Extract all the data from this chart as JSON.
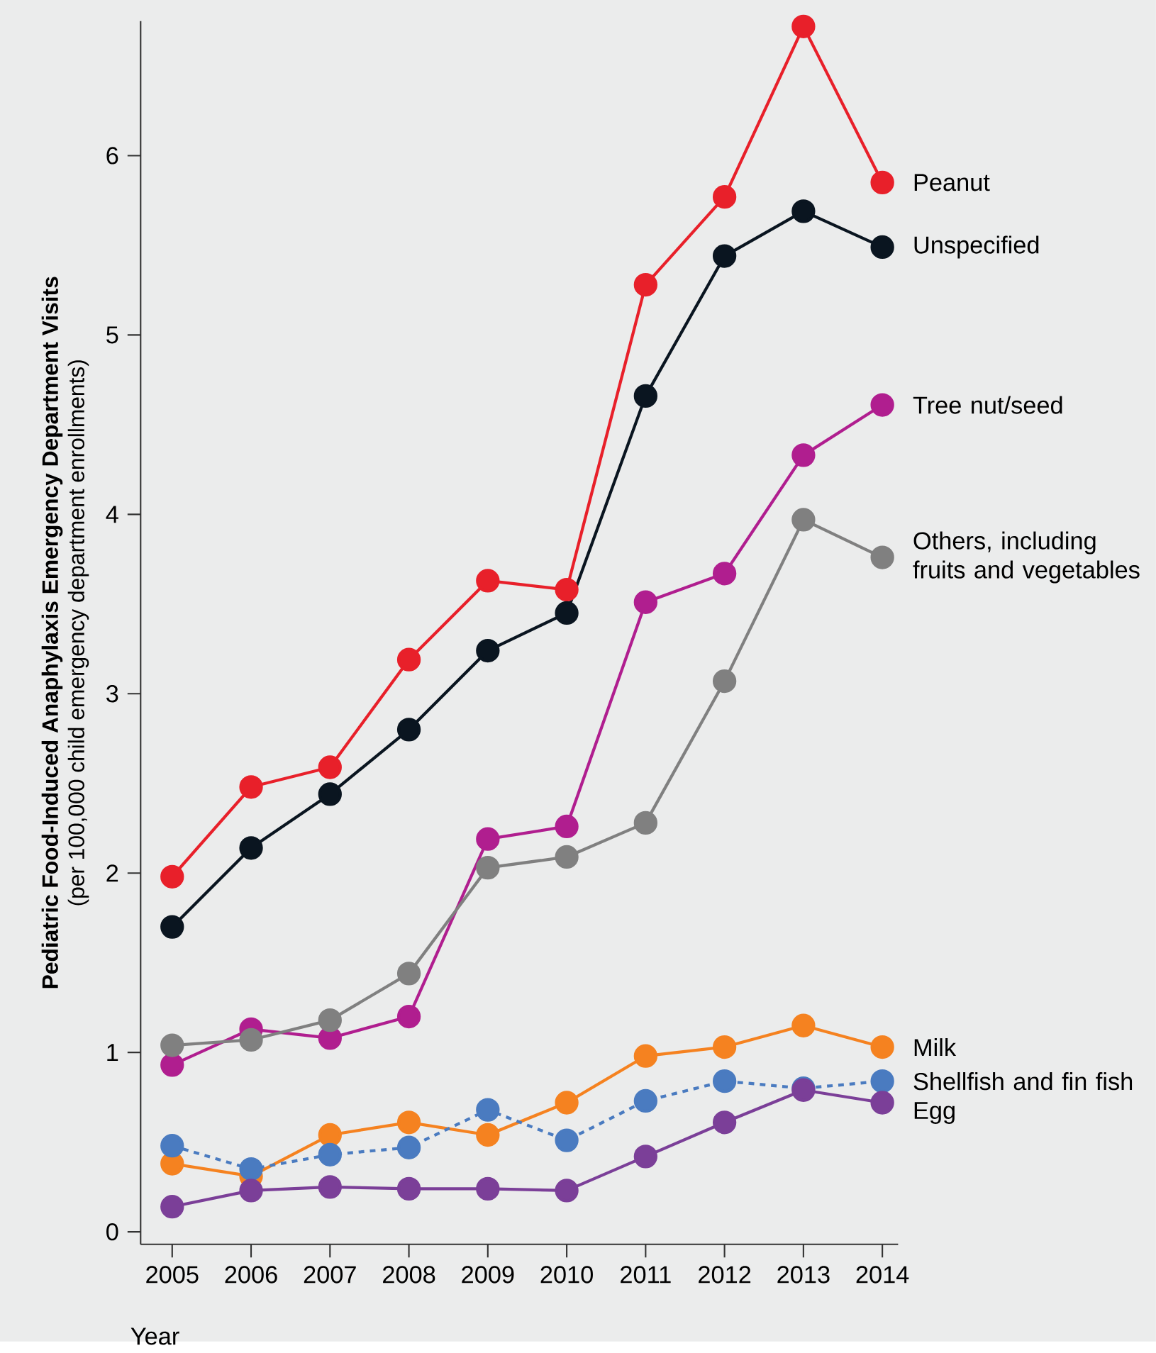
{
  "chart_data": {
    "type": "line",
    "ylabel": "Pediatric Food-Induced Anaphylaxis Emergency Department Visits",
    "xlabel": "Year",
    "annotations": [
      "(per 100,000 child emergency department enrollments)"
    ],
    "x": [
      2005,
      2006,
      2007,
      2008,
      2009,
      2010,
      2011,
      2012,
      2013,
      2014
    ],
    "xlim": [
      2004.6,
      2014.2
    ],
    "xticks": [
      2005,
      2006,
      2007,
      2008,
      2009,
      2010,
      2011,
      2012,
      2013,
      2014
    ],
    "ylim": [
      -0.07,
      6.75
    ],
    "yticks": [
      0,
      1,
      2,
      3,
      4,
      5,
      6
    ],
    "marker": "circle",
    "legend": false,
    "grid": false,
    "series": [
      {
        "name": "Peanut",
        "color": "#e8202a",
        "values": [
          1.98,
          2.48,
          2.59,
          3.19,
          3.63,
          3.58,
          5.28,
          5.77,
          6.72,
          5.85
        ]
      },
      {
        "name": "Unspecified",
        "color": "#0a1520",
        "values": [
          1.7,
          2.14,
          2.44,
          2.8,
          3.24,
          3.45,
          4.66,
          5.44,
          5.69,
          5.49
        ]
      },
      {
        "name": "Tree nut/seed",
        "color": "#b01e8f",
        "values": [
          0.93,
          1.13,
          1.08,
          1.2,
          2.19,
          2.26,
          3.51,
          3.67,
          4.33,
          4.61
        ]
      },
      {
        "name": "Others, including fruits and vegetables",
        "color": "#808080",
        "values": [
          1.04,
          1.07,
          1.18,
          1.44,
          2.03,
          2.09,
          2.28,
          3.07,
          3.97,
          3.76
        ]
      },
      {
        "name": "Milk",
        "color": "#f58220",
        "values": [
          0.38,
          0.31,
          0.54,
          0.61,
          0.54,
          0.72,
          0.98,
          1.03,
          1.15,
          1.03
        ]
      },
      {
        "name": "Shellfish and fin fish",
        "color": "#4a7bc0",
        "line_style": "dashed",
        "values": [
          0.48,
          0.35,
          0.43,
          0.47,
          0.68,
          0.51,
          0.73,
          0.84,
          0.8,
          0.84
        ]
      },
      {
        "name": "Egg",
        "color": "#7b3f98",
        "values": [
          0.14,
          0.23,
          0.25,
          0.24,
          0.24,
          0.23,
          0.42,
          0.61,
          0.79,
          0.72
        ]
      }
    ]
  }
}
